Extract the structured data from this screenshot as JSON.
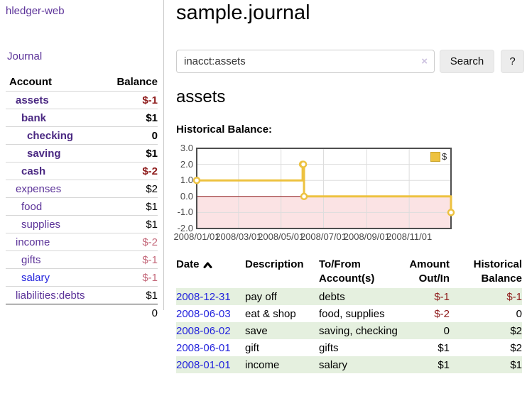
{
  "app": {
    "title": "hledger-web"
  },
  "sidebar": {
    "journal_label": "Journal",
    "accounts_table": {
      "headers": {
        "account": "Account",
        "balance": "Balance"
      },
      "rows": [
        {
          "name": "assets",
          "depth": 0,
          "balance": "$-1",
          "bold": true,
          "balance_style": "negative"
        },
        {
          "name": "bank",
          "depth": 1,
          "balance": "$1",
          "bold": true,
          "balance_style": "normal"
        },
        {
          "name": "checking",
          "depth": 2,
          "balance": "0",
          "bold": true,
          "balance_style": "normal"
        },
        {
          "name": "saving",
          "depth": 2,
          "balance": "$1",
          "bold": true,
          "balance_style": "normal"
        },
        {
          "name": "cash",
          "depth": 1,
          "balance": "$-2",
          "bold": true,
          "balance_style": "negative"
        },
        {
          "name": "expenses",
          "depth": 0,
          "balance": "$2",
          "bold": false,
          "balance_style": "normal"
        },
        {
          "name": "food",
          "depth": 1,
          "balance": "$1",
          "bold": false,
          "balance_style": "normal"
        },
        {
          "name": "supplies",
          "depth": 1,
          "balance": "$1",
          "bold": false,
          "balance_style": "normal"
        },
        {
          "name": "income",
          "depth": 0,
          "balance": "$-2",
          "bold": false,
          "balance_style": "negative-light"
        },
        {
          "name": "gifts",
          "depth": 1,
          "balance": "$-1",
          "bold": false,
          "balance_style": "negative-light"
        },
        {
          "name": "salary",
          "depth": 1,
          "balance": "$-1",
          "bold": false,
          "balance_style": "negative-light",
          "link_style": "blue"
        },
        {
          "name": "liabilities:debts",
          "depth": 0,
          "balance": "$1",
          "bold": false,
          "balance_style": "normal"
        }
      ],
      "total_balance": "0"
    }
  },
  "main": {
    "title": "sample.journal",
    "search": {
      "value": "inacct:assets",
      "clear_icon": "×",
      "search_button": "Search",
      "help_button": "?"
    },
    "account_heading": "assets",
    "register_table": {
      "headers": {
        "date": "Date",
        "description": "Description",
        "accounts": "To/From Account(s)",
        "amount": "Amount Out/In",
        "balance": "Historical Balance"
      },
      "rows": [
        {
          "date": "2008-12-31",
          "description": "pay off",
          "accounts": "debts",
          "amount": "$-1",
          "amount_negative": true,
          "balance": "$-1",
          "balance_negative": true
        },
        {
          "date": "2008-06-03",
          "description": "eat & shop",
          "accounts": "food, supplies",
          "amount": "$-2",
          "amount_negative": true,
          "balance": "0",
          "balance_negative": false
        },
        {
          "date": "2008-06-02",
          "description": "save",
          "accounts": "saving, checking",
          "amount": "0",
          "amount_negative": false,
          "balance": "$2",
          "balance_negative": false
        },
        {
          "date": "2008-06-01",
          "description": "gift",
          "accounts": "gifts",
          "amount": "$1",
          "amount_negative": false,
          "balance": "$2",
          "balance_negative": false
        },
        {
          "date": "2008-01-01",
          "description": "income",
          "accounts": "salary",
          "amount": "$1",
          "amount_negative": false,
          "balance": "$1",
          "balance_negative": false
        }
      ]
    }
  },
  "chart_data": {
    "type": "line",
    "step": true,
    "title": "Historical Balance:",
    "x_range_days": [
      0,
      365
    ],
    "ylim": [
      -2,
      3
    ],
    "y_ticks": [
      3,
      2,
      1,
      0,
      -1,
      -2
    ],
    "x_ticks": [
      {
        "d": 0,
        "label": "2008/01/01"
      },
      {
        "d": 60,
        "label": "2008/03/01"
      },
      {
        "d": 121,
        "label": "2008/05/01"
      },
      {
        "d": 182,
        "label": "2008/07/01"
      },
      {
        "d": 244,
        "label": "2008/09/01"
      },
      {
        "d": 305,
        "label": "2008/11/01"
      }
    ],
    "series": [
      {
        "name": "$",
        "color": "#edc240",
        "points": [
          {
            "date": "2008-01-01",
            "d": 0,
            "value": 1
          },
          {
            "date": "2008-06-01",
            "d": 152,
            "value": 2
          },
          {
            "date": "2008-06-02",
            "d": 153,
            "value": 2
          },
          {
            "date": "2008-06-03",
            "d": 154,
            "value": 0
          },
          {
            "date": "2008-12-31",
            "d": 365,
            "value": -1
          }
        ]
      }
    ],
    "grid": true,
    "legend_position": "top-right",
    "negative_fill": "#fbe3e4",
    "zero_line_color": "#8b1a1a",
    "gridline_color": "#dddddd",
    "border_color": "#4e4e4e"
  },
  "colors": {
    "link_purple": "#5c3399",
    "link_blue": "#2424dd",
    "negative": "#8e1b1b",
    "negative_light": "#c4687a",
    "row_stripe_green": "#e5f0df",
    "series_gold": "#edc240"
  }
}
